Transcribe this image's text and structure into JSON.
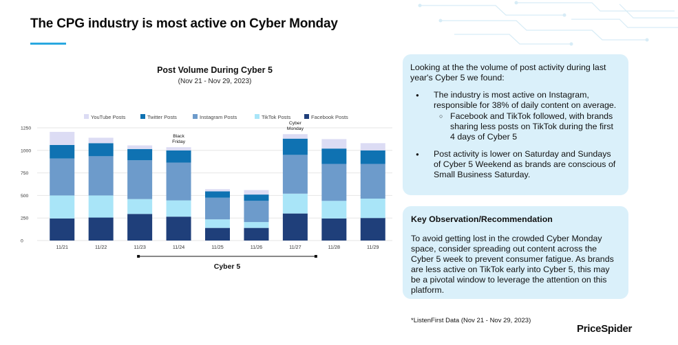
{
  "slide": {
    "title": "The CPG industry is most active on Cyber Monday",
    "footnote": "*ListenFirst Data (Nov 21 - Nov 29, 2023)",
    "brand": "PriceSpider"
  },
  "findings": {
    "intro": "Looking at the the volume of post activity during last year's Cyber 5 we found:",
    "bullet_1": "The industry is most active on Instagram, responsible for 38% of daily content on average.",
    "sub_bullet_1": "Facebook and TikTok followed, with brands sharing less posts on TikTok during the first 4 days of Cyber 5",
    "bullet_2": "Post activity is lower on Saturday and Sundays of Cyber 5 Weekend as brands are conscious of Small Business Saturday."
  },
  "observation": {
    "heading": "Key Observation/Recommendation",
    "body": "To avoid getting lost in the crowded Cyber Monday space, consider spreading out content across the Cyber 5 week to prevent consumer fatigue. As brands are less active on TikTok early into Cyber 5, this may be a pivotal window to leverage the attention on this platform."
  },
  "chart_data": {
    "type": "bar",
    "stacked": true,
    "title": "Post Volume During Cyber 5",
    "subtitle": "(Nov 21 - Nov 29, 2023)",
    "categories": [
      "11/21",
      "11/22",
      "11/23",
      "11/24",
      "11/25",
      "11/26",
      "11/27",
      "11/28",
      "11/29"
    ],
    "ylim": [
      0,
      1250
    ],
    "yticks": [
      0,
      250,
      500,
      750,
      1000,
      1250
    ],
    "grid": true,
    "legend_position": "top",
    "series": [
      {
        "name": "Facebook Posts",
        "color": "#1f3f7a",
        "values": [
          245,
          255,
          295,
          265,
          140,
          140,
          300,
          245,
          250
        ]
      },
      {
        "name": "TikTok Posts",
        "color": "#a9e5f8",
        "values": [
          255,
          245,
          165,
          180,
          95,
          65,
          220,
          195,
          215
        ]
      },
      {
        "name": "Instagram Posts",
        "color": "#6d9bcb",
        "values": [
          410,
          435,
          430,
          420,
          240,
          235,
          430,
          410,
          385
        ]
      },
      {
        "name": "Twitter Posts",
        "color": "#0f72b2",
        "values": [
          150,
          145,
          125,
          135,
          70,
          70,
          180,
          170,
          150
        ]
      },
      {
        "name": "YouTube Posts",
        "color": "#dcdcf4",
        "values": [
          145,
          60,
          40,
          35,
          25,
          50,
          50,
          105,
          80
        ]
      }
    ],
    "legend_order": [
      "YouTube Posts",
      "Twitter Posts",
      "Instagram Posts",
      "TikTok Posts",
      "Facebook Posts"
    ],
    "annotations": [
      {
        "category": "11/24",
        "text_line1": "Black",
        "text_line2": "Friday"
      },
      {
        "category": "11/27",
        "text_line1": "Cyber",
        "text_line2": "Monday"
      }
    ],
    "bracket": {
      "label": "Cyber 5",
      "from": "11/23",
      "to": "11/27"
    }
  }
}
